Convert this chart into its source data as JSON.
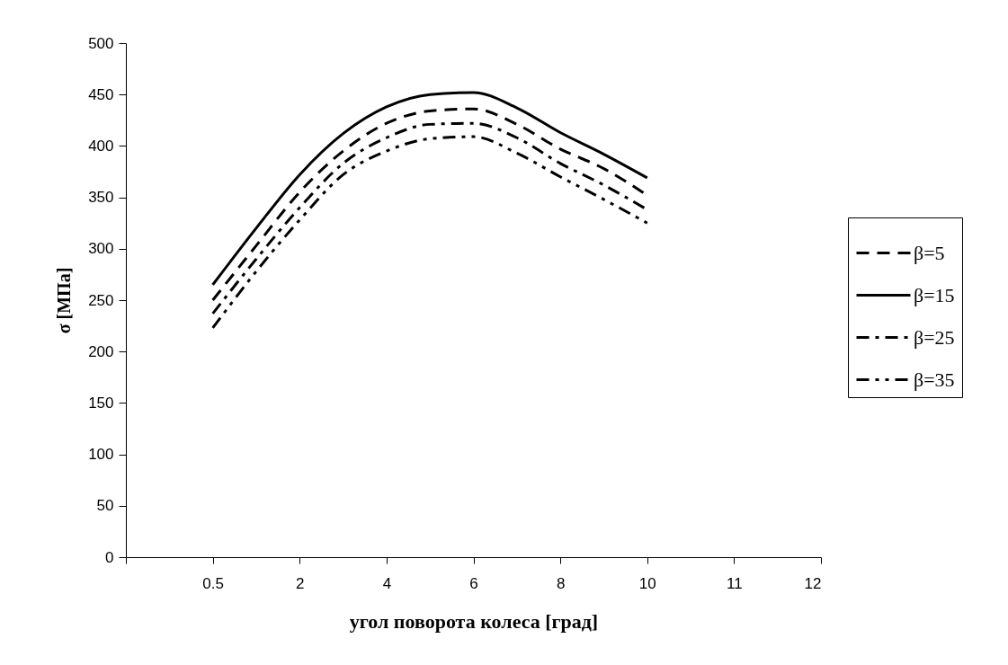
{
  "chart_data": {
    "type": "line",
    "xlabel": "угол поворота колеса [град]",
    "ylabel": "σ [МПа]",
    "categories": [
      null,
      null,
      "0.5",
      null,
      "2",
      null,
      "4",
      null,
      "6",
      null,
      "8",
      null,
      "10",
      null,
      "11",
      null,
      "12"
    ],
    "ylim": [
      0,
      500
    ],
    "yticks": [
      0,
      50,
      100,
      150,
      200,
      250,
      300,
      350,
      400,
      450,
      500
    ],
    "grid": false,
    "legend": "right",
    "marker": "none",
    "series": [
      {
        "name": "β=5",
        "color": "#000000",
        "line_style": "dashed",
        "values": [
          null,
          null,
          250,
          303,
          355,
          395,
          422,
          434,
          436,
          421,
          397,
          378,
          352,
          null,
          null,
          null,
          null
        ]
      },
      {
        "name": "β=15",
        "color": "#000000",
        "line_style": "solid",
        "values": [
          null,
          null,
          265,
          320,
          372,
          412,
          438,
          450,
          452,
          437,
          413,
          392,
          369,
          null,
          null,
          null,
          null
        ]
      },
      {
        "name": "β=25",
        "color": "#000000",
        "line_style": "dashdot",
        "values": [
          null,
          null,
          237,
          290,
          340,
          383,
          408,
          421,
          422,
          408,
          383,
          362,
          338,
          null,
          null,
          null,
          null
        ]
      },
      {
        "name": "β=35",
        "color": "#000000",
        "line_style": "dashdotdot",
        "values": [
          null,
          null,
          223,
          278,
          328,
          372,
          395,
          407,
          409,
          393,
          370,
          348,
          325,
          null,
          null,
          null,
          null
        ]
      }
    ]
  }
}
